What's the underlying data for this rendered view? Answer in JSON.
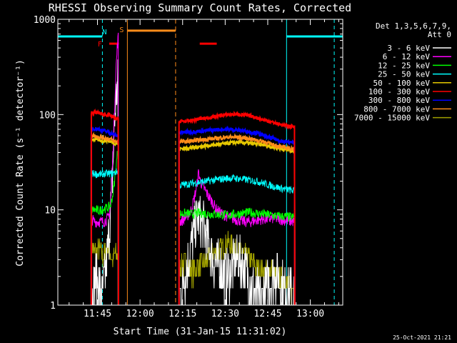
{
  "chart_data": {
    "type": "line",
    "title": "RHESSI Observing Summary Count Rates, Corrected",
    "xlabel": "Start Time (31-Jan-15 11:31:02)",
    "ylabel": "Corrected Count Rate (s⁻¹ detector⁻¹)",
    "y_scale": "log",
    "ylim": [
      1,
      1000
    ],
    "xlim_minutes_after_start": [
      0,
      100.4
    ],
    "x_ticks": [
      {
        "label": "11:45",
        "minutes": 13.97
      },
      {
        "label": "12:00",
        "minutes": 28.97
      },
      {
        "label": "12:15",
        "minutes": 43.97
      },
      {
        "label": "12:30",
        "minutes": 58.97
      },
      {
        "label": "12:45",
        "minutes": 73.97
      },
      {
        "label": "13:00",
        "minutes": 88.97
      }
    ],
    "y_ticks": [
      1,
      10,
      100,
      1000
    ],
    "y_tick_labels": [
      "1",
      "10",
      "100",
      "1000"
    ],
    "timestamp": "25-Oct-2021 21:21",
    "legend": {
      "placement": "right",
      "header_line1": "Det 1,3,5,6,7,9,",
      "header_line2": "Att 0"
    },
    "series": [
      {
        "name": "3 - 6 keV",
        "color": "#ffffff",
        "segments": [
          {
            "t": [
              11.8,
              12.5,
              13.5,
              14.5,
              15.5,
              16.5,
              17.5,
              18.4,
              19.2,
              19.8,
              20.3,
              20.8,
              21.2
            ],
            "y": [
              1.0,
              1.6,
              2.0,
              1.6,
              1.2,
              1.8,
              3.5,
              8,
              20,
              60,
              120,
              180,
              220
            ]
          },
          {
            "t": [
              42.7,
              43.5,
              44.5,
              45.5,
              46.5,
              47.5,
              48.5,
              49.5,
              50.5,
              51.5,
              52.5,
              53.5,
              54.5,
              55.5,
              56.5,
              57.5,
              58.5,
              59.5,
              60.5,
              61.5,
              62.5,
              63.5,
              64.5,
              65.5,
              66.5,
              67.5,
              68.5,
              69.5,
              70.5,
              71.5,
              72.5,
              73.5,
              74.5,
              75.5,
              76.5,
              77.5,
              78.5,
              79.5,
              80.5,
              81.5,
              82.5,
              83.5
            ],
            "y": [
              1.0,
              1.4,
              2.0,
              2.5,
              3.5,
              5.0,
              7.0,
              8.5,
              7.5,
              6.5,
              5.0,
              4.0,
              3.0,
              2.8,
              2.6,
              2.4,
              2.2,
              2.0,
              2.2,
              2.5,
              2.8,
              3.0,
              2.8,
              2.5,
              2.2,
              1.9,
              1.6,
              1.4,
              1.2,
              1.1,
              1.3,
              1.5,
              1.8,
              2.0,
              2.2,
              2.0,
              1.8,
              1.6,
              1.5,
              1.4,
              1.3,
              1.2
            ]
          }
        ]
      },
      {
        "name": "6 - 12 keV",
        "color": "#ff00ff",
        "segments": [
          {
            "t": [
              11.8,
              13.0,
              14.5,
              16.0,
              17.5,
              18.2,
              18.8,
              19.4,
              20.0,
              20.5,
              21.0,
              21.4
            ],
            "y": [
              8,
              7.5,
              7.5,
              7.5,
              8,
              9,
              15,
              40,
              120,
              300,
              550,
              700
            ]
          },
          {
            "t": [
              42.7,
              44.0,
              45.5,
              47.0,
              48.0,
              49.0,
              49.6,
              50.2,
              51.0,
              52.0,
              53.0,
              54.5,
              56.0,
              58.0,
              60.0,
              62.0,
              64.0,
              66.0,
              68.0,
              70.0,
              72.0,
              74.0,
              76.0,
              78.0,
              80.0,
              82.0,
              83.5
            ],
            "y": [
              7.5,
              7.8,
              8.5,
              10,
              13,
              18,
              25,
              20,
              18,
              16,
              14,
              12,
              10,
              9,
              8.5,
              8.0,
              7.8,
              7.5,
              7.5,
              7.8,
              8.0,
              8.0,
              8.2,
              8.0,
              7.8,
              7.6,
              7.5
            ]
          }
        ]
      },
      {
        "name": "12 - 25 keV",
        "color": "#00ff00",
        "segments": [
          {
            "t": [
              11.8,
              13.0,
              14.5,
              16.0,
              17.5,
              18.5,
              19.3,
              20.0,
              20.6,
              21.0,
              21.4
            ],
            "y": [
              10,
              10,
              9.8,
              10.2,
              10.5,
              11,
              14,
              20,
              30,
              40,
              45
            ]
          },
          {
            "t": [
              42.7,
              45.0,
              47.5,
              50.0,
              52.5,
              55.0,
              57.5,
              60.0,
              62.5,
              65.0,
              67.5,
              70.0,
              72.5,
              75.0,
              77.5,
              80.0,
              82.5,
              83.5
            ],
            "y": [
              9,
              9.2,
              9.0,
              9.3,
              9.1,
              9.0,
              8.9,
              8.8,
              9.0,
              9.2,
              9.4,
              9.2,
              9.0,
              8.8,
              8.6,
              8.5,
              8.4,
              8.3
            ]
          }
        ]
      },
      {
        "name": "25 - 50 keV",
        "color": "#00ffff",
        "segments": [
          {
            "t": [
              11.8,
              13.0,
              14.5,
              16.0,
              17.5,
              18.5,
              19.3,
              20.0,
              20.6,
              21.4
            ],
            "y": [
              24,
              24,
              23.5,
              24,
              24,
              24,
              24,
              24.5,
              25,
              26
            ]
          },
          {
            "t": [
              42.7,
              45.0,
              47.5,
              50.0,
              52.5,
              55.0,
              57.5,
              60.0,
              62.5,
              65.0,
              67.5,
              70.0,
              72.5,
              75.0,
              77.5,
              80.0,
              82.5,
              83.5
            ],
            "y": [
              18,
              18.5,
              19,
              19.5,
              20,
              20.5,
              21,
              21.5,
              21.5,
              21,
              20.5,
              20,
              19,
              18,
              17.2,
              16.5,
              16,
              15.8
            ]
          }
        ]
      },
      {
        "name": "50 - 100 keV",
        "color": "#e6c800",
        "segments": [
          {
            "t": [
              11.8,
              13.0,
              14.5,
              16.0,
              17.5,
              18.5,
              19.3,
              20.0,
              21.4
            ],
            "y": [
              55,
              55,
              54,
              53,
              54,
              52,
              51,
              50,
              50
            ]
          },
          {
            "t": [
              42.7,
              45.0,
              47.5,
              50.0,
              52.5,
              55.0,
              57.5,
              60.0,
              62.5,
              65.0,
              67.5,
              70.0,
              72.5,
              75.0,
              77.5,
              80.0,
              82.5,
              83.5
            ],
            "y": [
              44,
              44,
              45,
              46,
              47,
              48,
              49,
              50,
              51,
              51,
              50,
              49,
              48,
              46,
              44.5,
              43,
              42,
              41.5
            ]
          }
        ]
      },
      {
        "name": "100 - 300 keV",
        "color": "#ff0000",
        "segments": [
          {
            "t": [
              11.8,
              13.0,
              14.5,
              16.0,
              17.5,
              18.5,
              19.3,
              20.0,
              20.6,
              21.4
            ],
            "y": [
              105,
              105,
              104,
              100,
              100,
              98,
              95,
              92,
              90,
              90
            ]
          },
          {
            "t": [
              42.7,
              45.0,
              47.5,
              50.0,
              52.5,
              55.0,
              57.5,
              60.0,
              62.5,
              65.0,
              67.5,
              70.0,
              72.5,
              75.0,
              77.5,
              80.0,
              82.5,
              83.5
            ],
            "y": [
              85,
              85,
              87,
              90,
              92,
              95,
              98,
              100,
              101,
              100,
              97,
              93,
              88,
              84,
              80,
              77,
              75,
              74
            ]
          }
        ]
      },
      {
        "name": "300 - 800 keV",
        "color": "#0000ff",
        "segments": [
          {
            "t": [
              11.8,
              13.0,
              14.5,
              16.0,
              17.5,
              18.5,
              19.3,
              20.0,
              20.6,
              21.4
            ],
            "y": [
              72,
              71,
              70,
              68,
              66,
              64,
              63,
              61,
              60,
              60
            ]
          },
          {
            "t": [
              42.7,
              45.0,
              47.5,
              50.0,
              52.5,
              55.0,
              57.5,
              60.0,
              62.5,
              65.0,
              67.5,
              70.0,
              72.5,
              75.0,
              77.5,
              80.0,
              82.5,
              83.5
            ],
            "y": [
              65,
              65,
              66,
              67,
              68,
              69,
              70,
              70,
              69,
              68,
              66,
              64,
              60,
              57,
              54,
              52,
              51,
              50
            ]
          }
        ]
      },
      {
        "name": "800 - 7000 keV",
        "color": "#ff8c1a",
        "segments": [
          {
            "t": [
              11.8,
              13.0,
              14.5,
              16.0,
              17.5,
              18.5,
              19.3,
              20.0,
              20.6,
              21.4
            ],
            "y": [
              60,
              60,
              58,
              57,
              56,
              55,
              54,
              52,
              52,
              52
            ]
          },
          {
            "t": [
              42.7,
              45.0,
              47.5,
              50.0,
              52.5,
              55.0,
              57.5,
              60.0,
              62.5,
              65.0,
              67.5,
              70.0,
              72.5,
              75.0,
              77.5,
              80.0,
              82.5,
              83.5
            ],
            "y": [
              52,
              52,
              53,
              54,
              55,
              56,
              57,
              58,
              58,
              57,
              56,
              54,
              52,
              49,
              47,
              45,
              44,
              43
            ]
          }
        ]
      },
      {
        "name": "7000 - 15000 keV",
        "color": "#a0a000",
        "segments": [
          {
            "t": [
              11.8,
              13.0,
              14.5,
              16.0,
              17.5,
              18.5,
              19.3,
              20.0,
              21.4
            ],
            "y": [
              4.5,
              3.5,
              4.0,
              3.2,
              4.5,
              3.5,
              2.8,
              3.5,
              3.0
            ]
          },
          {
            "t": [
              42.7,
              45.0,
              47.5,
              50.0,
              52.5,
              55.0,
              57.5,
              60.0,
              62.5,
              65.0,
              67.5,
              70.0,
              72.5,
              75.0,
              77.5,
              80.0,
              82.5,
              83.5
            ],
            "y": [
              2.5,
              2.8,
              2.2,
              2.6,
              3.0,
              3.5,
              4.0,
              4.5,
              4.0,
              3.5,
              3.0,
              2.5,
              2.2,
              2.4,
              2.0,
              1.8,
              1.5,
              1.4
            ]
          }
        ]
      }
    ],
    "annotations": {
      "night": {
        "label": "N",
        "color": "#00ffff",
        "level": 660,
        "bars": [
          [
            0,
            15.7
          ],
          [
            80.6,
            100.4
          ]
        ],
        "boundaries_dashed": [
          15.7,
          97.4
        ],
        "boundaries_solid": [
          0,
          80.6
        ]
      },
      "saa": {
        "label": "S",
        "color": "#ff8c1a",
        "level": 760,
        "bar": [
          24.5,
          41.5
        ],
        "boundaries_solid": [
          24.5
        ],
        "boundaries_dashed": [
          41.5
        ]
      },
      "flare": {
        "label": "F",
        "color": "#ff0000",
        "level": 555,
        "bars": [
          [
            18.1,
            21.5
          ],
          [
            50.0,
            56.0
          ]
        ]
      }
    }
  }
}
